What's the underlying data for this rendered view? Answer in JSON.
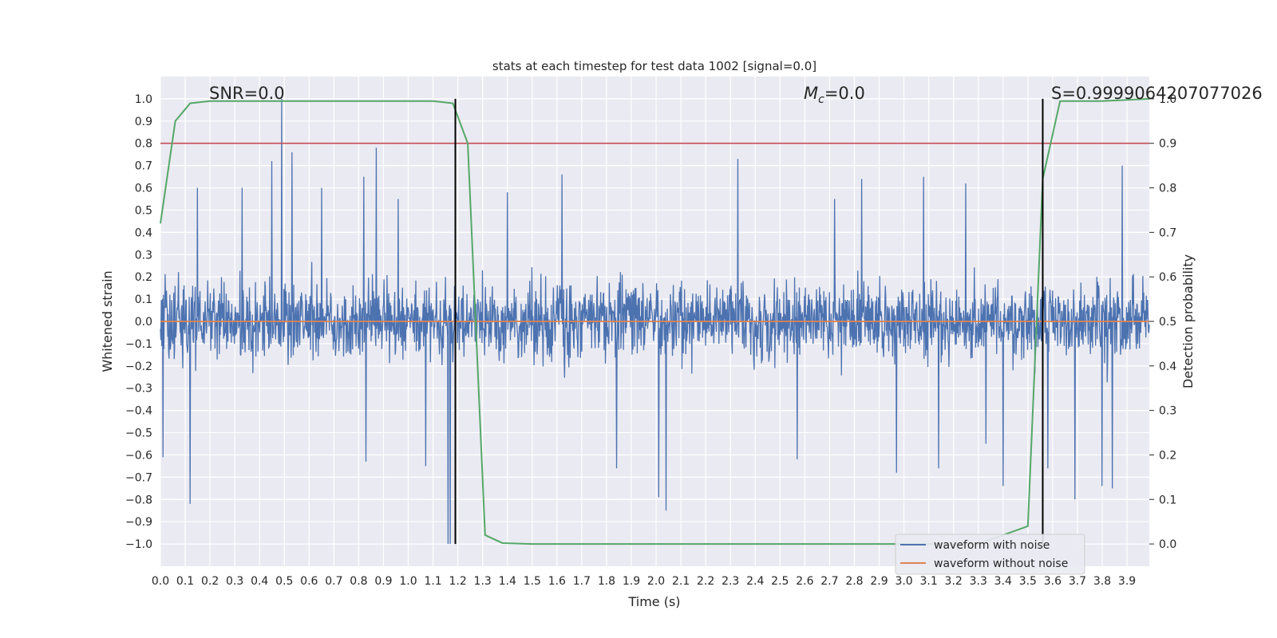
{
  "chart_data": {
    "type": "line",
    "title": "stats at each timestep for test data 1002 [signal=0.0]",
    "xlabel": "Time (s)",
    "ylabel": "Whitened strain",
    "y2label": "Detection probability",
    "xlim": [
      0.0,
      3.99
    ],
    "ylim": [
      -1.1,
      1.1
    ],
    "y2lim": [
      -0.05,
      1.05
    ],
    "xticks": [
      "0.0",
      "0.1",
      "0.2",
      "0.3",
      "0.4",
      "0.5",
      "0.6",
      "0.7",
      "0.8",
      "0.9",
      "1.0",
      "1.1",
      "1.2",
      "1.3",
      "1.4",
      "1.5",
      "1.6",
      "1.7",
      "1.8",
      "1.9",
      "2.0",
      "2.1",
      "2.2",
      "2.3",
      "2.4",
      "2.5",
      "2.6",
      "2.7",
      "2.8",
      "2.9",
      "3.0",
      "3.1",
      "3.2",
      "3.3",
      "3.4",
      "3.5",
      "3.6",
      "3.7",
      "3.8",
      "3.9"
    ],
    "yticks": [
      "1.0",
      "0.9",
      "0.8",
      "0.7",
      "0.6",
      "0.5",
      "0.4",
      "0.3",
      "0.2",
      "0.1",
      "0.0",
      "−0.1",
      "−0.2",
      "−0.3",
      "−0.4",
      "−0.5",
      "−0.6",
      "−0.7",
      "−0.8",
      "−0.9",
      "−1.0"
    ],
    "y2ticks": [
      "1.0",
      "0.9",
      "0.8",
      "0.7",
      "0.6",
      "0.5",
      "0.4",
      "0.3",
      "0.2",
      "0.1",
      "0.0"
    ],
    "grid": true,
    "legend_position": "lower-right",
    "annotations": {
      "snr": "SNR=0.0",
      "mc_symbol": "M",
      "mc_sub": "c",
      "mc_value": "=0.0",
      "s": "S=0.9999064207077026"
    },
    "series": [
      {
        "name": "waveform with noise",
        "color": "#4c72b0",
        "description": "dense noise, mostly within ±0.4",
        "spikes": [
          {
            "t": 0.49,
            "v": 1.0
          },
          {
            "t": 0.53,
            "v": 0.76
          },
          {
            "t": 0.87,
            "v": 0.78
          },
          {
            "t": 0.82,
            "v": 0.65
          },
          {
            "t": 0.45,
            "v": 0.72
          },
          {
            "t": 1.16,
            "v": -1.0
          },
          {
            "t": 1.17,
            "v": -1.0
          },
          {
            "t": 0.12,
            "v": -0.82
          },
          {
            "t": 2.04,
            "v": -0.85
          },
          {
            "t": 2.01,
            "v": -0.79
          },
          {
            "t": 3.69,
            "v": -0.8
          },
          {
            "t": 3.8,
            "v": -0.74
          },
          {
            "t": 3.84,
            "v": -0.75
          },
          {
            "t": 3.4,
            "v": -0.74
          },
          {
            "t": 2.33,
            "v": 0.73
          },
          {
            "t": 1.62,
            "v": 0.66
          },
          {
            "t": 3.88,
            "v": 0.7
          },
          {
            "t": 3.08,
            "v": 0.65
          },
          {
            "t": 2.83,
            "v": 0.64
          },
          {
            "t": 0.96,
            "v": 0.55
          },
          {
            "t": 0.65,
            "v": 0.6
          },
          {
            "t": 1.4,
            "v": 0.58
          },
          {
            "t": 1.84,
            "v": -0.66
          },
          {
            "t": 2.57,
            "v": -0.62
          },
          {
            "t": 3.14,
            "v": -0.66
          },
          {
            "t": 3.33,
            "v": -0.55
          },
          {
            "t": 0.83,
            "v": -0.63
          },
          {
            "t": 1.07,
            "v": -0.65
          },
          {
            "t": 0.33,
            "v": 0.6
          },
          {
            "t": 3.58,
            "v": -0.66
          },
          {
            "t": 2.97,
            "v": -0.68
          },
          {
            "t": 0.01,
            "v": -0.61
          },
          {
            "t": 0.15,
            "v": 0.6
          },
          {
            "t": 2.72,
            "v": 0.55
          },
          {
            "t": 3.25,
            "v": 0.62
          }
        ]
      },
      {
        "name": "waveform without noise",
        "color": "#dd8452",
        "x": [
          0.0,
          3.99
        ],
        "y": [
          0.0,
          0.0
        ]
      },
      {
        "name": "detection probability",
        "color": "#55a868",
        "axis": "right",
        "x": [
          0.0,
          0.06,
          0.12,
          0.2,
          0.3,
          0.5,
          1.0,
          1.1,
          1.18,
          1.24,
          1.31,
          1.38,
          1.5,
          2.0,
          2.5,
          3.0,
          3.3,
          3.5,
          3.56,
          3.63,
          3.8,
          3.99
        ],
        "y": [
          0.72,
          0.95,
          0.99,
          0.995,
          0.995,
          0.995,
          0.995,
          0.995,
          0.99,
          0.9,
          0.02,
          0.002,
          0.0,
          0.0,
          0.0,
          0.0,
          0.0,
          0.04,
          0.82,
          0.995,
          0.995,
          1.0
        ]
      }
    ],
    "threshold_line": {
      "axis": "right",
      "value": 0.9,
      "color": "#c44e52"
    },
    "vertical_markers": [
      1.19,
      3.56
    ]
  }
}
